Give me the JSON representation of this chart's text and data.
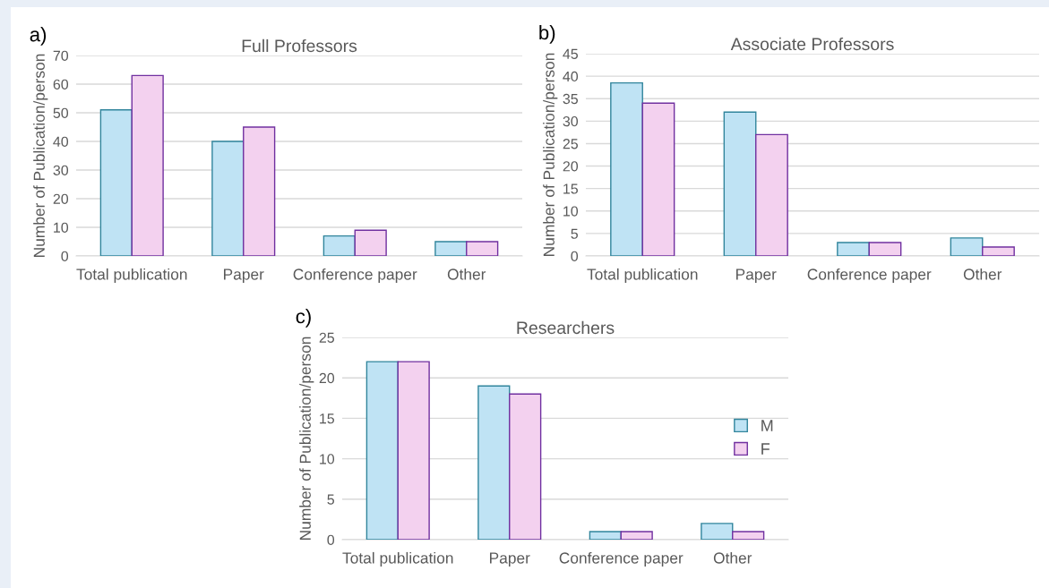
{
  "chart_data": [
    {
      "type": "bar",
      "title": "Full Professors",
      "ylabel": "Number of Publication/person",
      "annotations": [
        "a)"
      ],
      "categories": [
        "Total publication",
        "Paper",
        "Conference paper",
        "Other"
      ],
      "series": [
        {
          "color": "#bfe3f4",
          "values": [
            51,
            40,
            7,
            5
          ]
        },
        {
          "color": "#f3d1ef",
          "values": [
            63,
            45,
            9,
            5
          ]
        }
      ],
      "ylim": [
        0,
        70
      ],
      "yticks": [
        0,
        10,
        20,
        30,
        40,
        50,
        60,
        70
      ],
      "grid": "y",
      "legend": false
    },
    {
      "type": "bar",
      "title": "Associate Professors",
      "ylabel": "Number of Publication/person",
      "annotations": [
        "b)"
      ],
      "categories": [
        "Total publication",
        "Paper",
        "Conference paper",
        "Other"
      ],
      "series": [
        {
          "color": "#bfe3f4",
          "values": [
            38.5,
            32,
            3,
            4
          ]
        },
        {
          "color": "#f3d1ef",
          "values": [
            34,
            27,
            3,
            2
          ]
        }
      ],
      "ylim": [
        0,
        45
      ],
      "yticks": [
        0,
        5,
        10,
        15,
        20,
        25,
        30,
        35,
        40,
        45
      ],
      "grid": "y",
      "legend": false
    },
    {
      "type": "bar",
      "title": "Researchers",
      "ylabel": "Number of Publication/person",
      "annotations": [
        "c)"
      ],
      "categories": [
        "Total publication",
        "Paper",
        "Conference paper",
        "Other"
      ],
      "series": [
        {
          "name": "M",
          "color": "#bfe3f4",
          "values": [
            22,
            19,
            1,
            2
          ]
        },
        {
          "name": "F",
          "color": "#f3d1ef",
          "values": [
            22,
            18,
            1,
            1
          ]
        }
      ],
      "ylim": [
        0,
        25
      ],
      "yticks": [
        0,
        5,
        10,
        15,
        20,
        25
      ],
      "grid": "y",
      "legend": "right"
    }
  ]
}
